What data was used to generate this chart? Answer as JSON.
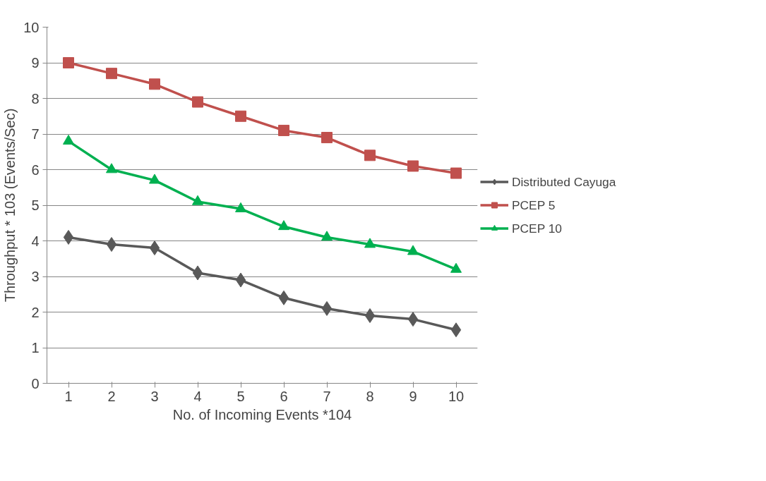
{
  "chart_data": {
    "type": "line",
    "xlabel": "No. of Incoming Events *104",
    "ylabel": "Throughput * 103 (Events/Sec)",
    "categories": [
      "1",
      "2",
      "3",
      "4",
      "5",
      "6",
      "7",
      "8",
      "9",
      "10"
    ],
    "ylim": [
      0,
      10
    ],
    "yticks": [
      0,
      1,
      2,
      3,
      4,
      5,
      6,
      7,
      8,
      9,
      10
    ],
    "grid": "y",
    "legend": "right",
    "line_style": "solid",
    "series": [
      {
        "name": "Distributed Cayuga",
        "color": "#595959",
        "marker": "diamond",
        "values": [
          4.1,
          3.9,
          3.8,
          3.1,
          2.9,
          2.4,
          2.1,
          1.9,
          1.8,
          1.5
        ]
      },
      {
        "name": "PCEP 5",
        "color": "#c0504d",
        "marker": "square",
        "values": [
          9.0,
          8.7,
          8.4,
          7.9,
          7.5,
          7.1,
          6.9,
          6.4,
          6.1,
          5.9
        ]
      },
      {
        "name": "PCEP 10",
        "color": "#00b050",
        "marker": "triangle",
        "values": [
          6.8,
          6.0,
          5.7,
          5.1,
          4.9,
          4.4,
          4.1,
          3.9,
          3.7,
          3.2
        ]
      }
    ]
  }
}
